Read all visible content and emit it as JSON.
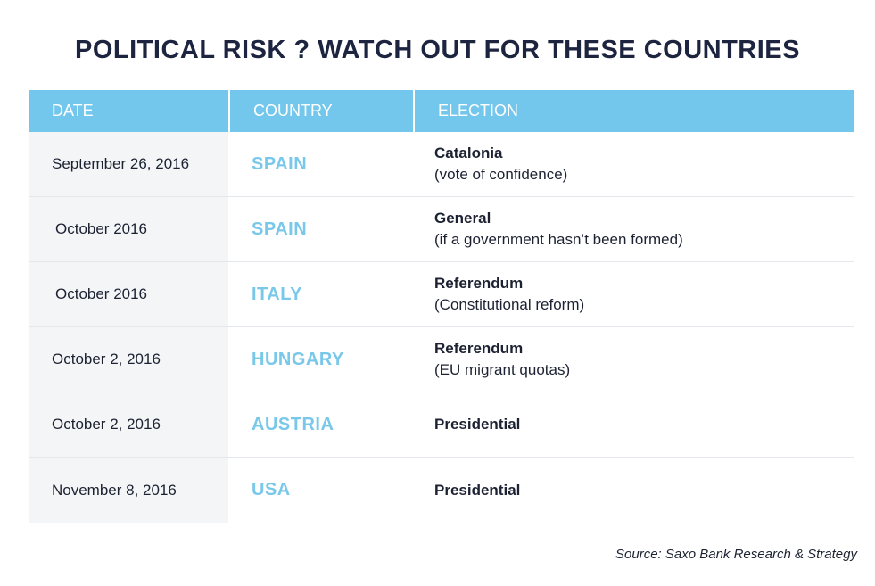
{
  "title": "POLITICAL RISK ? WATCH OUT FOR THESE COUNTRIES",
  "table": {
    "headers": [
      "DATE",
      "COUNTRY",
      "ELECTION"
    ],
    "rows": [
      {
        "date": "September 26, 2016",
        "country": "SPAIN",
        "election": "Catalonia",
        "detail": "(vote of confidence)"
      },
      {
        "date": "October 2016",
        "country": "SPAIN",
        "election": "General",
        "detail": "(if a government hasn’t been formed)"
      },
      {
        "date": "October 2016",
        "country": "ITALY",
        "election": "Referendum",
        "detail": "(Constitutional reform)"
      },
      {
        "date": "October 2, 2016",
        "country": "HUNGARY",
        "election": "Referendum",
        "detail": "(EU migrant quotas)"
      },
      {
        "date": "October 2, 2016",
        "country": "AUSTRIA",
        "election": "Presidential",
        "detail": ""
      },
      {
        "date": "November 8, 2016",
        "country": "USA",
        "election": "Presidential",
        "detail": ""
      }
    ]
  },
  "source": "Source: Saxo Bank Research & Strategy",
  "colors": {
    "header_bg": "#73c7ec",
    "country_text": "#79c8ea",
    "title_text": "#1d2440",
    "date_bg": "#f4f5f7"
  }
}
